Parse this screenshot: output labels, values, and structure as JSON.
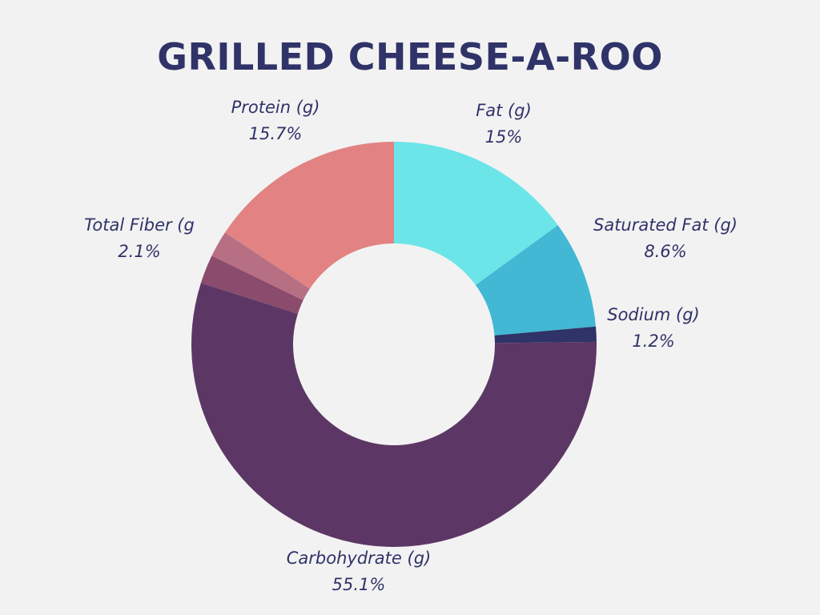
{
  "chart_data": {
    "type": "pie",
    "donut": true,
    "title": "GRILLED CHEESE-A-ROO",
    "slices": [
      {
        "label": "Fat (g)",
        "value_label": "15%",
        "value": 15.0,
        "color": "#6be5e8"
      },
      {
        "label": "Saturated Fat (g)",
        "value_label": "8.6%",
        "value": 8.6,
        "color": "#42b8d4"
      },
      {
        "label": "Sodium (g)",
        "value_label": "1.2%",
        "value": 1.2,
        "color": "#2f3368"
      },
      {
        "label": "Carbohydrate (g)",
        "value_label": "55.1%",
        "value": 55.1,
        "color": "#5c3765"
      },
      {
        "label": "",
        "value_label": "",
        "value": 2.3,
        "color": "#8a4b6c"
      },
      {
        "label": "Total Fiber (g",
        "value_label": "2.1%",
        "value": 2.1,
        "color": "#b76f84"
      },
      {
        "label": "Protein (g)",
        "value_label": "15.7%",
        "value": 15.7,
        "color": "#e28282"
      }
    ]
  }
}
